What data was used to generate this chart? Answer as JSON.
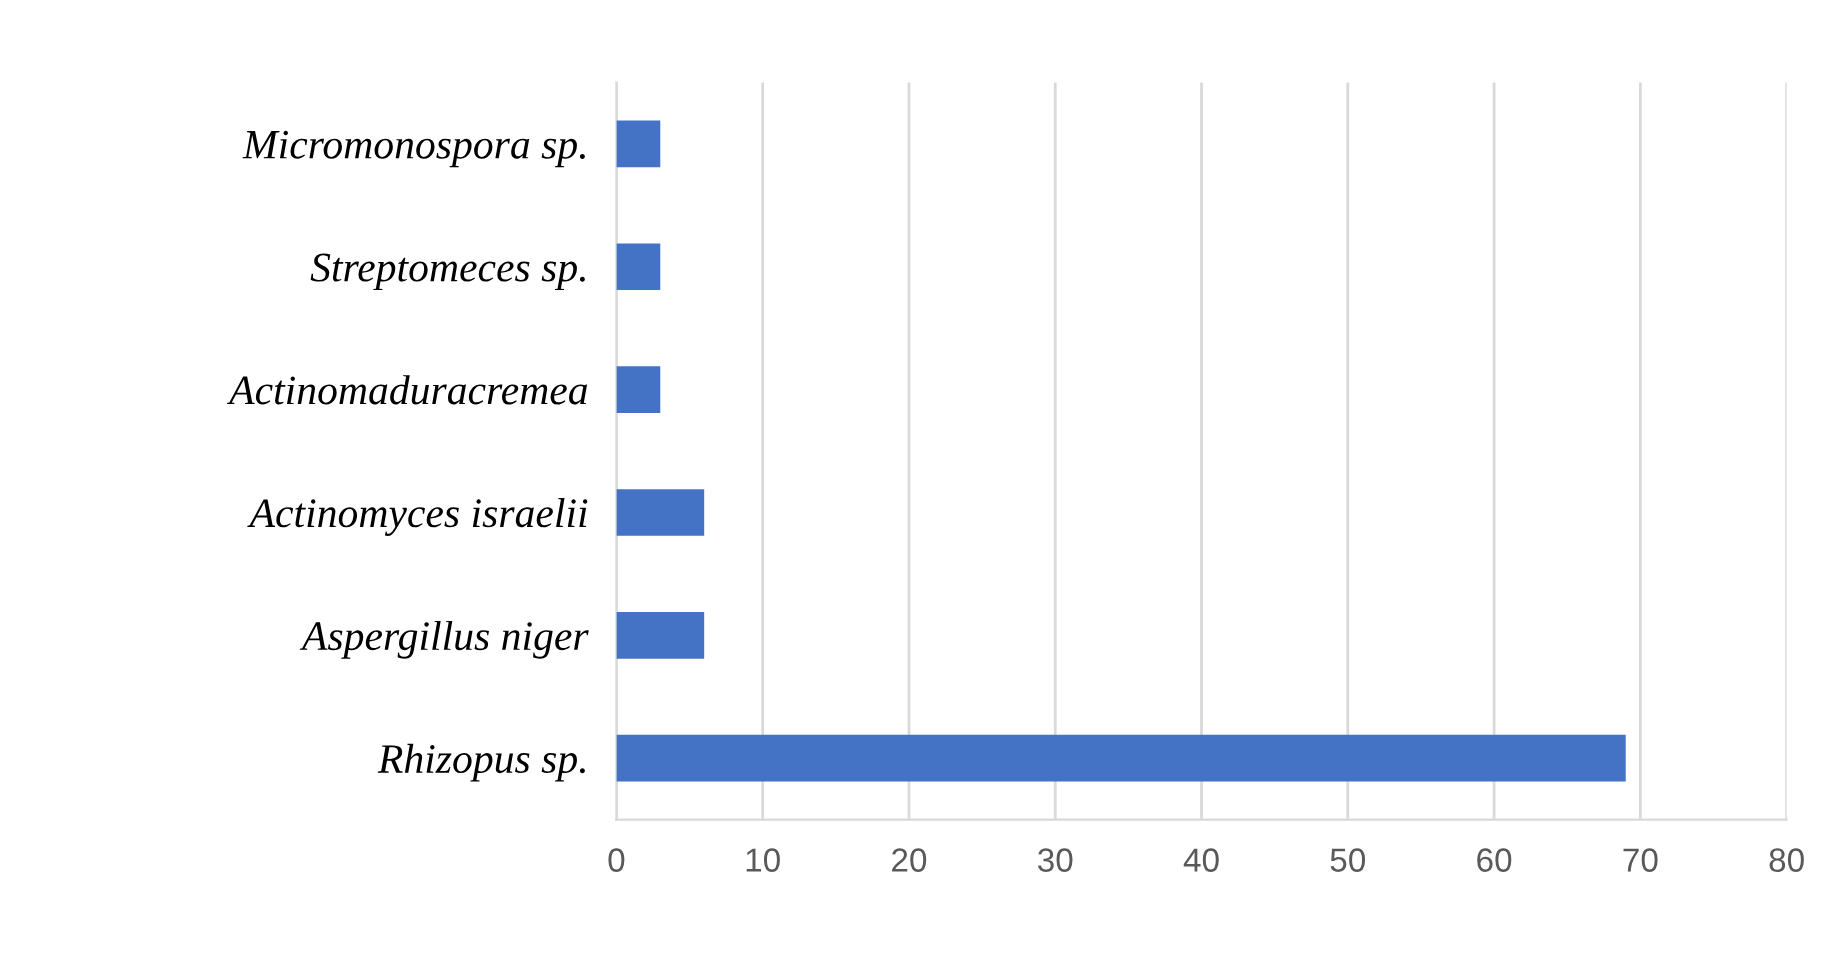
{
  "chart_data": {
    "type": "bar",
    "orientation": "horizontal",
    "categories": [
      "Micromonospora sp.",
      "Streptomeces sp.",
      "Actinomaduracremea",
      "Actinomyces israelii",
      "Aspergillus niger",
      "Rhizopus sp."
    ],
    "values": [
      3,
      3,
      3,
      6,
      6,
      69
    ],
    "color": "#4472c4",
    "xlim": [
      0,
      80
    ],
    "xticks": [
      0,
      10,
      20,
      30,
      40,
      50,
      60,
      70,
      80
    ],
    "grid": "x"
  }
}
